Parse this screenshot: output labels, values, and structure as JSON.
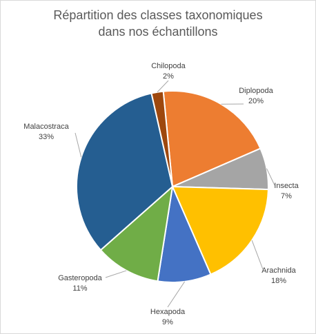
{
  "chart_data": {
    "type": "pie",
    "title_lines": [
      "Répartition des classes taxonomiques",
      "dans nos échantillons"
    ],
    "start_angle_deg": -5.5,
    "slices": [
      {
        "name": "Diplopoda",
        "value": 20,
        "label": "20%",
        "color": "#ED7D31"
      },
      {
        "name": "Insecta",
        "value": 7,
        "label": "7%",
        "color": "#A5A5A5"
      },
      {
        "name": "Arachnida",
        "value": 18,
        "label": "18%",
        "color": "#FFC000"
      },
      {
        "name": "Hexapoda",
        "value": 9,
        "label": "9%",
        "color": "#4472C4"
      },
      {
        "name": "Gasteropoda",
        "value": 11,
        "label": "11%",
        "color": "#70AD47"
      },
      {
        "name": "Malacostraca",
        "value": 33,
        "label": "33%",
        "color": "#255E91"
      },
      {
        "name": "Chilopoda",
        "value": 2,
        "label": "2%",
        "color": "#9E480E"
      }
    ]
  }
}
